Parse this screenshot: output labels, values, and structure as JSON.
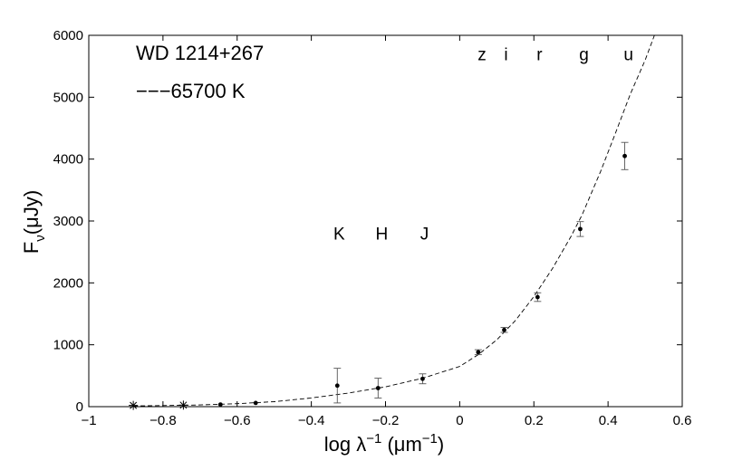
{
  "chart_data": {
    "type": "scatter",
    "title": "WD 1214+267",
    "xlabel": {
      "main": "log λ",
      "sup1": "−1",
      "unit": " (μm",
      "sup2": "−1",
      "close": ")"
    },
    "ylabel": {
      "main": "F",
      "sub": "ν",
      "rest": "(μJy)"
    },
    "xlim": [
      -1,
      0.6
    ],
    "ylim": [
      0,
      6000
    ],
    "xticks": [
      -1,
      -0.8,
      -0.6,
      -0.4,
      -0.2,
      0,
      0.2,
      0.4,
      0.6
    ],
    "xtick_labels": [
      "−1",
      "−0.8",
      "−0.6",
      "−0.4",
      "−0.2",
      "0",
      "0.2",
      "0.4",
      "0.6"
    ],
    "yticks": [
      0,
      1000,
      2000,
      3000,
      4000,
      5000,
      6000
    ],
    "ytick_labels": [
      "0",
      "1000",
      "2000",
      "3000",
      "4000",
      "5000",
      "6000"
    ],
    "grid": false,
    "legend_text": "−−−65700  K",
    "model_curve": {
      "name": "65700 K",
      "style": "dashed",
      "points": [
        [
          -0.88,
          12
        ],
        [
          -0.8,
          18
        ],
        [
          -0.7,
          28
        ],
        [
          -0.6,
          48
        ],
        [
          -0.5,
          80
        ],
        [
          -0.4,
          140
        ],
        [
          -0.3,
          220
        ],
        [
          -0.2,
          320
        ],
        [
          -0.1,
          460
        ],
        [
          0.0,
          650
        ],
        [
          0.05,
          840
        ],
        [
          0.1,
          1080
        ],
        [
          0.15,
          1390
        ],
        [
          0.2,
          1780
        ],
        [
          0.25,
          2230
        ],
        [
          0.3,
          2750
        ],
        [
          0.33,
          3100
        ],
        [
          0.38,
          3800
        ],
        [
          0.42,
          4420
        ],
        [
          0.46,
          5050
        ],
        [
          0.5,
          5600
        ],
        [
          0.525,
          6000
        ]
      ]
    },
    "photometry": [
      {
        "x": -0.645,
        "y": 35,
        "err": 0
      },
      {
        "x": -0.55,
        "y": 60,
        "err": 0
      },
      {
        "x": -0.33,
        "y": 340,
        "err": 280
      },
      {
        "x": -0.22,
        "y": 300,
        "err": 160
      },
      {
        "x": -0.1,
        "y": 450,
        "err": 80
      },
      {
        "x": 0.05,
        "y": 880,
        "err": 40
      },
      {
        "x": 0.12,
        "y": 1240,
        "err": 40
      },
      {
        "x": 0.21,
        "y": 1770,
        "err": 70
      },
      {
        "x": 0.325,
        "y": 2870,
        "err": 120
      },
      {
        "x": 0.445,
        "y": 4050,
        "err": 220
      }
    ],
    "upper_markers": [
      {
        "x": -0.88,
        "y": 20
      },
      {
        "x": -0.745,
        "y": 25
      }
    ],
    "band_labels_top": [
      {
        "label": "z",
        "x": 0.06
      },
      {
        "label": "i",
        "x": 0.125
      },
      {
        "label": "r",
        "x": 0.215
      },
      {
        "label": "g",
        "x": 0.335
      },
      {
        "label": "u",
        "x": 0.455
      }
    ],
    "band_labels_mid": [
      {
        "label": "K",
        "x": -0.325
      },
      {
        "label": "H",
        "x": -0.21
      },
      {
        "label": "J",
        "x": -0.095
      }
    ],
    "band_labels_top_y": 5700,
    "band_labels_mid_y": 2800
  }
}
